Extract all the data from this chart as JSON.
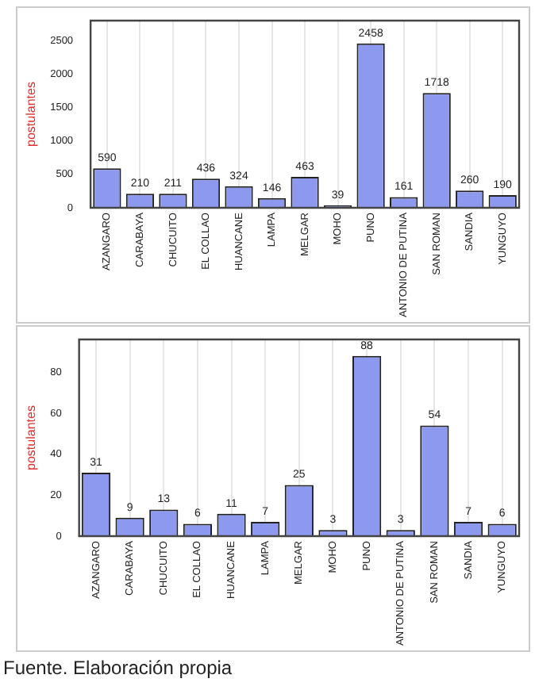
{
  "chart_data": [
    {
      "type": "bar",
      "ylabel": "postulantes",
      "categories": [
        "AZANGARO",
        "CARABAYA",
        "CHUCUITO",
        "EL COLLAO",
        "HUANCANE",
        "LAMPA",
        "MELGAR",
        "MOHO",
        "PUNO",
        "ANTONIO DE PUTINA",
        "SAN ROMAN",
        "SANDIA",
        "YUNGUYO"
      ],
      "values": [
        590,
        210,
        211,
        436,
        324,
        146,
        463,
        39,
        2458,
        161,
        1718,
        260,
        190
      ],
      "color": "#8c99ee",
      "ylim": [
        0,
        2800
      ],
      "yticks": [
        0,
        500,
        1000,
        1500,
        2000,
        2500
      ],
      "grid": "x",
      "data_labels": true
    },
    {
      "type": "bar",
      "ylabel": "postulantes",
      "categories": [
        "AZANGARO",
        "CARABAYA",
        "CHUCUITO",
        "EL COLLAO",
        "HUANCANE",
        "LAMPA",
        "MELGAR",
        "MOHO",
        "PUNO",
        "ANTONIO DE PUTINA",
        "SAN ROMAN",
        "SANDIA",
        "YUNGUYO"
      ],
      "values": [
        31,
        9,
        13,
        6,
        11,
        7,
        25,
        3,
        88,
        3,
        54,
        7,
        6
      ],
      "color": "#8c99ee",
      "ylim": [
        0,
        96
      ],
      "yticks": [
        0,
        20,
        40,
        60,
        80
      ],
      "grid": "x",
      "data_labels": true,
      "annotations": [
        "Fuente. Elaboración propia"
      ]
    }
  ]
}
